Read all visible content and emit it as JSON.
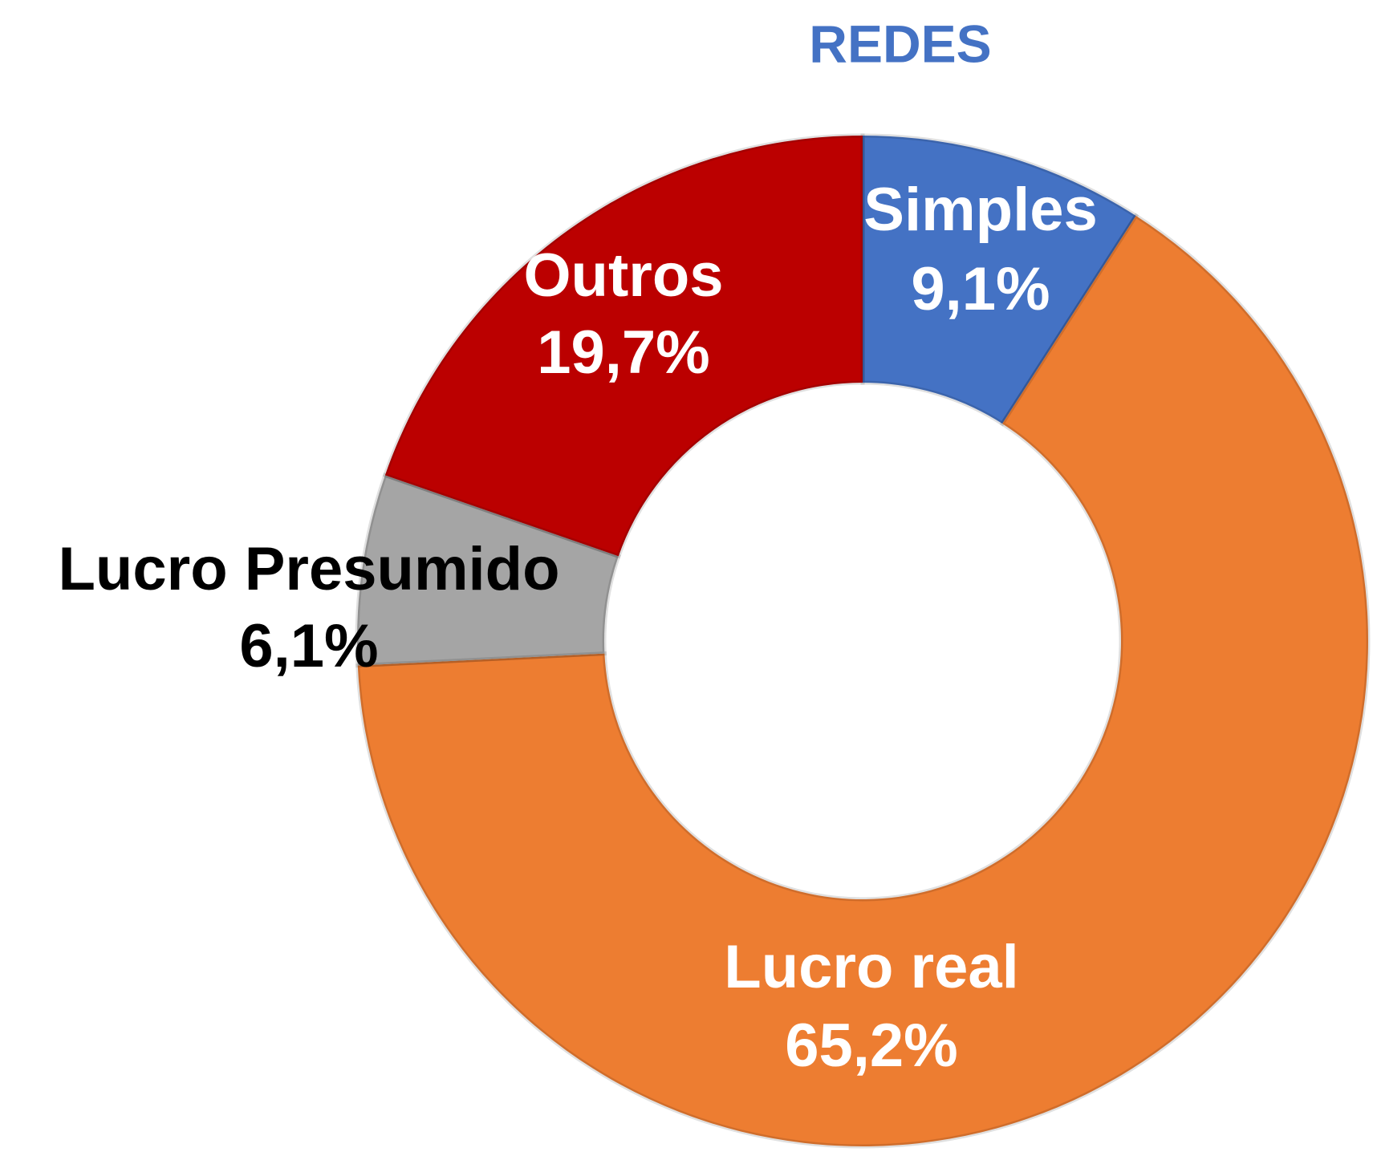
{
  "chart_data": {
    "type": "donut",
    "title": "REDES",
    "title_color": "#4472c4",
    "categories": [
      "Simples",
      "Lucro real",
      "Lucro Presumido",
      "Outros"
    ],
    "values": [
      9.1,
      65.2,
      6.1,
      19.7
    ],
    "value_labels": [
      "9,1%",
      "65,2%",
      "6,1%",
      "19,7%"
    ],
    "colors": [
      "#4472c4",
      "#ed7d31",
      "#a5a5a5",
      "#bb0000"
    ],
    "label_colors": [
      "#ffffff",
      "#ffffff",
      "#000000",
      "#ffffff"
    ]
  }
}
